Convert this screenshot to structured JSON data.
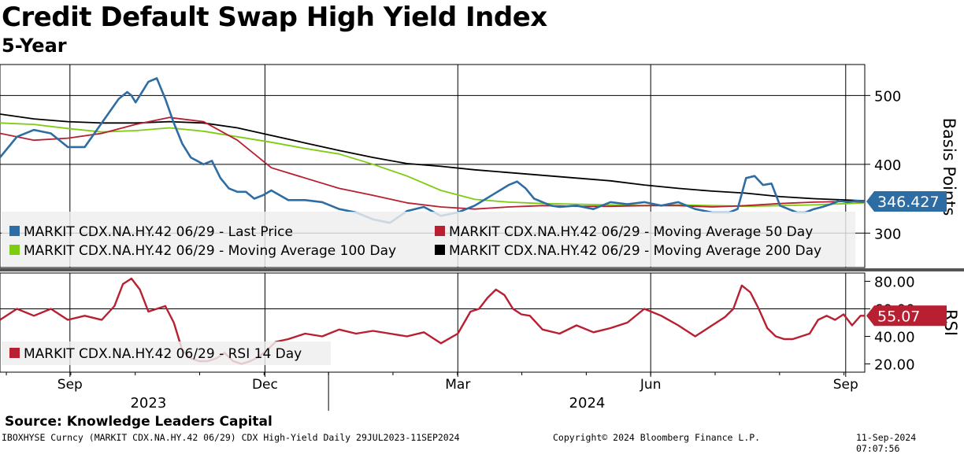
{
  "header": {
    "title": "Credit Default Swap High Yield Index",
    "subtitle": "5-Year"
  },
  "footer": {
    "source": "Source: Knowledge Leaders Capital",
    "ticker_info": "IBOXHYSE Curncy (MARKIT CDX.NA.HY.42 06/29) CDX High-Yield  Daily 29JUL2023-11SEP2024",
    "copyright": "Copyright© 2024 Bloomberg Finance L.P.",
    "timestamp": "11-Sep-2024 07:07:56"
  },
  "colors": {
    "last_price": "#2e6da4",
    "ma50": "#b81f31",
    "ma100": "#7dcc12",
    "ma200": "#000000",
    "rsi": "#b81f31"
  },
  "chart_data": [
    {
      "type": "line",
      "title": "Credit Default Swap High Yield Index",
      "ylabel": "Basis Points",
      "ylim": [
        250,
        545
      ],
      "yticks": [
        300,
        400,
        500
      ],
      "xlim": [
        0,
        408
      ],
      "x_ticks": [
        {
          "day": 33,
          "label": "Sep"
        },
        {
          "day": 125,
          "label": "Dec"
        },
        {
          "day": 216,
          "label": "Mar"
        },
        {
          "day": 307,
          "label": "Jun"
        },
        {
          "day": 399,
          "label": "Sep"
        }
      ],
      "year_labels": [
        {
          "label": "2023",
          "day": 70
        },
        {
          "label": "2024",
          "day": 277
        }
      ],
      "year_divider_day": 155,
      "last_value_label": "346.427",
      "legend": [
        "MARKIT CDX.NA.HY.42 06/29 - Last Price",
        "MARKIT CDX.NA.HY.42 06/29 - Moving Average 50 Day",
        "MARKIT CDX.NA.HY.42 06/29 - Moving Average 100 Day",
        "MARKIT CDX.NA.HY.42 06/29 - Moving Average 200 Day"
      ],
      "series": [
        {
          "name": "Last Price",
          "x": [
            0,
            8,
            16,
            24,
            32,
            40,
            48,
            56,
            60,
            62,
            64,
            66,
            70,
            74,
            78,
            82,
            86,
            90,
            96,
            100,
            104,
            108,
            112,
            116,
            120,
            124,
            128,
            136,
            144,
            152,
            160,
            168,
            176,
            184,
            192,
            200,
            208,
            216,
            224,
            232,
            240,
            244,
            248,
            252,
            256,
            260,
            264,
            272,
            280,
            288,
            296,
            304,
            312,
            320,
            328,
            336,
            344,
            348,
            352,
            356,
            360,
            364,
            368,
            372,
            376,
            380,
            384,
            388,
            392,
            396,
            400,
            404,
            408
          ],
          "values": [
            410,
            440,
            450,
            445,
            425,
            425,
            460,
            495,
            505,
            500,
            490,
            500,
            520,
            525,
            495,
            460,
            430,
            410,
            400,
            405,
            380,
            365,
            360,
            360,
            350,
            355,
            362,
            348,
            348,
            345,
            335,
            330,
            320,
            315,
            332,
            338,
            325,
            330,
            340,
            355,
            370,
            375,
            365,
            350,
            345,
            340,
            338,
            340,
            335,
            345,
            342,
            345,
            340,
            345,
            335,
            330,
            330,
            335,
            380,
            383,
            370,
            372,
            340,
            335,
            330,
            330,
            335,
            338,
            342,
            347,
            345,
            347,
            346
          ]
        },
        {
          "name": "Moving Average 50 Day",
          "x": [
            0,
            16,
            32,
            48,
            64,
            80,
            96,
            112,
            128,
            144,
            160,
            176,
            192,
            208,
            224,
            240,
            256,
            272,
            288,
            304,
            320,
            336,
            352,
            368,
            384,
            400,
            408
          ],
          "values": [
            445,
            435,
            438,
            445,
            458,
            468,
            462,
            435,
            395,
            380,
            365,
            355,
            344,
            338,
            335,
            338,
            340,
            339,
            339,
            340,
            340,
            338,
            340,
            343,
            345,
            346,
            345
          ]
        },
        {
          "name": "Moving Average 100 Day",
          "x": [
            0,
            16,
            32,
            48,
            64,
            80,
            96,
            112,
            128,
            144,
            160,
            176,
            192,
            208,
            224,
            240,
            256,
            272,
            288,
            304,
            320,
            336,
            352,
            368,
            384,
            400,
            408
          ],
          "values": [
            460,
            458,
            452,
            447,
            449,
            453,
            448,
            440,
            432,
            423,
            415,
            400,
            383,
            362,
            349,
            345,
            343,
            342,
            341,
            340,
            341,
            340,
            339,
            340,
            341,
            343,
            344
          ]
        },
        {
          "name": "Moving Average 200 Day",
          "x": [
            0,
            16,
            32,
            48,
            64,
            80,
            96,
            112,
            128,
            144,
            160,
            176,
            192,
            208,
            224,
            240,
            256,
            272,
            288,
            304,
            320,
            336,
            352,
            368,
            384,
            400,
            408
          ],
          "values": [
            473,
            466,
            462,
            460,
            460,
            462,
            460,
            453,
            442,
            431,
            420,
            410,
            401,
            397,
            392,
            388,
            384,
            380,
            376,
            370,
            365,
            361,
            358,
            353,
            350,
            348,
            347
          ]
        }
      ]
    },
    {
      "type": "line",
      "ylabel": "RSI",
      "ylim": [
        14,
        86
      ],
      "yticks": [
        20,
        40,
        60,
        80
      ],
      "ytick_labels": [
        "20.00",
        "40.00",
        "60.00",
        "80.00"
      ],
      "last_value_label": "55.07",
      "legend": [
        "MARKIT CDX.NA.HY.42 06/29 - RSI 14 Day"
      ],
      "series": [
        {
          "name": "RSI 14 Day",
          "x": [
            0,
            8,
            16,
            24,
            32,
            40,
            48,
            54,
            58,
            62,
            66,
            70,
            74,
            78,
            82,
            86,
            90,
            94,
            98,
            102,
            106,
            110,
            114,
            118,
            122,
            126,
            130,
            136,
            144,
            152,
            160,
            168,
            176,
            184,
            192,
            200,
            208,
            216,
            222,
            226,
            230,
            234,
            238,
            242,
            246,
            250,
            256,
            264,
            272,
            280,
            288,
            296,
            304,
            312,
            320,
            328,
            336,
            342,
            346,
            350,
            354,
            358,
            362,
            366,
            370,
            374,
            378,
            382,
            386,
            390,
            394,
            398,
            402,
            406,
            408
          ],
          "values": [
            52,
            60,
            55,
            60,
            52,
            55,
            52,
            62,
            78,
            82,
            74,
            58,
            60,
            62,
            50,
            30,
            24,
            22,
            22,
            24,
            28,
            22,
            20,
            22,
            25,
            30,
            36,
            38,
            42,
            40,
            45,
            42,
            44,
            42,
            40,
            43,
            35,
            42,
            58,
            60,
            68,
            74,
            70,
            60,
            56,
            55,
            45,
            42,
            48,
            43,
            46,
            50,
            60,
            55,
            48,
            40,
            48,
            54,
            60,
            77,
            72,
            60,
            46,
            40,
            38,
            38,
            40,
            42,
            52,
            55,
            52,
            56,
            48,
            55,
            55
          ]
        }
      ]
    }
  ]
}
